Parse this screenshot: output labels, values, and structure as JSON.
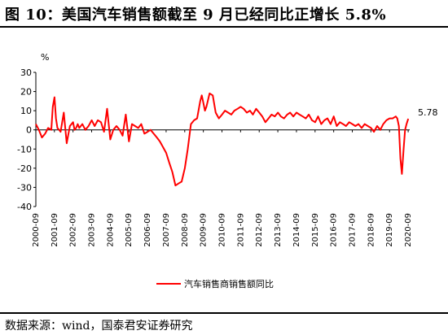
{
  "title": "图 10：美国汽车销售额截至 9 月已经同比正增长 5.8%",
  "source": "数据来源：wind，国泰君安证券研究",
  "chart_data": {
    "type": "line",
    "unit_label": "%",
    "ylim": [
      -40,
      30
    ],
    "yticks": [
      30,
      20,
      10,
      0,
      -10,
      -20,
      -30,
      -40
    ],
    "xlim": [
      2000.67,
      2020.75
    ],
    "xtick_labels": [
      "2000-09",
      "2001-09",
      "2002-09",
      "2003-09",
      "2004-09",
      "2005-09",
      "2006-09",
      "2007-09",
      "2008-09",
      "2009-09",
      "2010-09",
      "2011-09",
      "2012-09",
      "2013-09",
      "2014-09",
      "2015-09",
      "2016-09",
      "2017-09",
      "2018-09",
      "2019-09",
      "2020-09"
    ],
    "last_value_label": "5.78",
    "legend_position": "bottom-center",
    "series": [
      {
        "name": "汽车销售商销售额同比",
        "color": "#ff0000",
        "x": [
          2000.67,
          2000.83,
          2001.0,
          2001.17,
          2001.33,
          2001.5,
          2001.58,
          2001.67,
          2001.75,
          2001.83,
          2001.92,
          2002.0,
          2002.17,
          2002.33,
          2002.5,
          2002.67,
          2002.75,
          2002.83,
          2002.92,
          2003.0,
          2003.17,
          2003.33,
          2003.5,
          2003.67,
          2003.83,
          2004.0,
          2004.17,
          2004.33,
          2004.5,
          2004.67,
          2004.83,
          2005.0,
          2005.17,
          2005.33,
          2005.5,
          2005.67,
          2005.83,
          2006.0,
          2006.17,
          2006.33,
          2006.5,
          2006.67,
          2006.83,
          2007.0,
          2007.17,
          2007.33,
          2007.5,
          2007.67,
          2007.83,
          2008.0,
          2008.17,
          2008.33,
          2008.5,
          2008.67,
          2008.83,
          2009.0,
          2009.17,
          2009.33,
          2009.5,
          2009.58,
          2009.67,
          2009.75,
          2009.83,
          2010.0,
          2010.17,
          2010.33,
          2010.5,
          2010.67,
          2010.83,
          2011.0,
          2011.17,
          2011.33,
          2011.5,
          2011.67,
          2011.83,
          2012.0,
          2012.17,
          2012.33,
          2012.5,
          2012.67,
          2012.83,
          2013.0,
          2013.17,
          2013.33,
          2013.5,
          2013.67,
          2013.83,
          2014.0,
          2014.17,
          2014.33,
          2014.5,
          2014.67,
          2014.83,
          2015.0,
          2015.17,
          2015.33,
          2015.5,
          2015.67,
          2015.83,
          2016.0,
          2016.17,
          2016.33,
          2016.5,
          2016.67,
          2016.83,
          2017.0,
          2017.17,
          2017.33,
          2017.5,
          2017.67,
          2017.83,
          2018.0,
          2018.17,
          2018.33,
          2018.5,
          2018.67,
          2018.83,
          2019.0,
          2019.17,
          2019.33,
          2019.5,
          2019.67,
          2019.83,
          2020.0,
          2020.08,
          2020.17,
          2020.25,
          2020.33,
          2020.42,
          2020.5,
          2020.58,
          2020.67
        ],
        "y": [
          3,
          0,
          -4,
          -2,
          1,
          0,
          12,
          17,
          6,
          1,
          0,
          -1,
          9,
          -7,
          2,
          4,
          0,
          1,
          3,
          1,
          3,
          0,
          2,
          5,
          2,
          5,
          4,
          -1,
          11,
          -5,
          0,
          2,
          0,
          -3,
          8,
          -6,
          3,
          2,
          1,
          3,
          -2,
          -1,
          0,
          -2,
          -4,
          -6,
          -9,
          -12,
          -17,
          -22,
          -29,
          -28,
          -27,
          -20,
          -10,
          3,
          5,
          6,
          15,
          18,
          14,
          10,
          12,
          19,
          18,
          9,
          6,
          8,
          10,
          9,
          8,
          10,
          11,
          12,
          11,
          9,
          10,
          8,
          11,
          9,
          7,
          4,
          6,
          8,
          7,
          9,
          7,
          6,
          8,
          9,
          7,
          9,
          8,
          7,
          6,
          8,
          5,
          4,
          7,
          3,
          5,
          6,
          3,
          7,
          2,
          4,
          3,
          2,
          4,
          3,
          2,
          3,
          1,
          3,
          2,
          1,
          -1,
          2,
          0,
          3,
          5,
          6,
          6,
          7,
          6,
          2,
          -15,
          -23,
          -10,
          0,
          3,
          5.78
        ]
      }
    ]
  }
}
